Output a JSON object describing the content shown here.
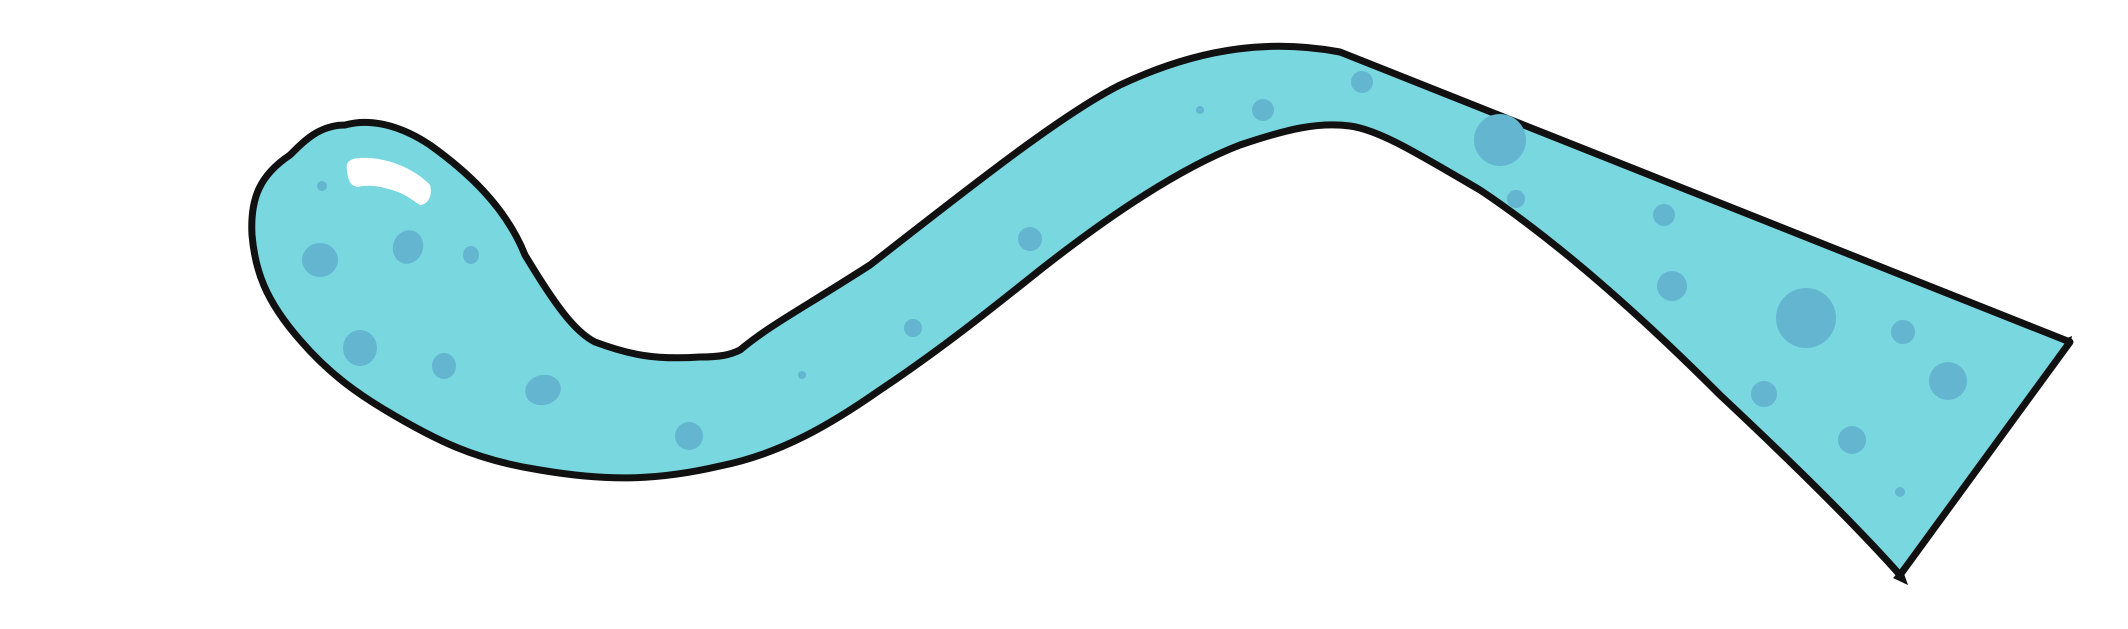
{
  "illustration": {
    "subject": "tentacle",
    "colors": {
      "background": "#ffffff",
      "fill": "#79d7e0",
      "outline": "#111111",
      "spots": "#63b5d0",
      "highlight": "#ffffff"
    },
    "icon": "tentacle-icon"
  }
}
